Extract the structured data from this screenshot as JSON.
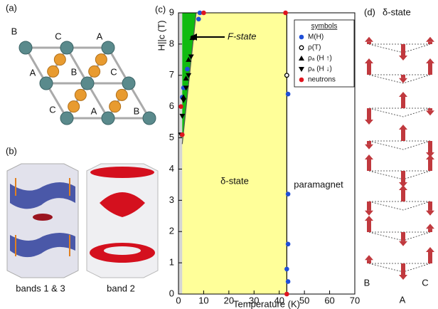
{
  "panel_a": {
    "label": "(a)",
    "site_labels": [
      "B",
      "C",
      "A",
      "A",
      "B",
      "C",
      "C",
      "A",
      "B"
    ]
  },
  "panel_b": {
    "label": "(b)",
    "captions": [
      "bands 1 & 3",
      "band 2"
    ]
  },
  "panel_d": {
    "label": "(d)",
    "title": "δ-state",
    "site_labels": [
      "B",
      "A",
      "C"
    ]
  },
  "chart_data": {
    "type": "scatter",
    "panel_label": "(c)",
    "x_label": "Temperature (K)",
    "y_label": "H||c (T)",
    "xlim": [
      0,
      70
    ],
    "ylim": [
      0,
      9
    ],
    "xticks": [
      0,
      10,
      20,
      30,
      40,
      50,
      60,
      70
    ],
    "yticks": [
      0,
      1,
      2,
      3,
      4,
      5,
      6,
      7,
      8,
      9
    ],
    "legend_title": "symbols",
    "legend": "upper right",
    "regions": [
      {
        "color": "#d4d4d4",
        "x": [
          0,
          1.5,
          1.5,
          0
        ],
        "y": [
          0,
          0,
          9,
          9
        ]
      },
      {
        "label": "δ-state",
        "color": "#ffff99",
        "x": [
          1.5,
          43,
          43,
          7,
          1.5
        ],
        "y": [
          0,
          0,
          9,
          9,
          4.8
        ]
      },
      {
        "label": "F-state",
        "color": "#11bb11",
        "x": [
          1.5,
          7,
          1.5
        ],
        "y": [
          4.8,
          9,
          9
        ]
      },
      {
        "label": "paramagnet",
        "color": "#ffffff",
        "x": [
          43,
          70,
          70,
          43
        ],
        "y": [
          0,
          0,
          9,
          9
        ]
      }
    ],
    "lines": [
      {
        "color": "#000000",
        "x": [
          43,
          43
        ],
        "y": [
          0,
          9
        ]
      },
      {
        "color": "#555555",
        "x": [
          1.5,
          7
        ],
        "y": [
          4.8,
          9
        ]
      }
    ],
    "series": [
      {
        "name": "M(H)",
        "marker": "circle",
        "color": "#1f4fd8",
        "x": [
          43.5,
          43,
          43.5,
          43.5,
          43.5,
          8.5,
          8,
          3.5,
          2,
          1.5
        ],
        "values": [
          0.4,
          0.8,
          1.6,
          3.2,
          6.4,
          9,
          8.8,
          7.2,
          6.6,
          6.3
        ]
      },
      {
        "name": "ρ(T)",
        "marker": "open-circle",
        "color": "#000000",
        "x": [
          43
        ],
        "values": [
          7.0
        ]
      },
      {
        "name": "ρₐ (H ↑)",
        "marker": "triangle-up",
        "color": "#000000",
        "x": [
          2,
          3,
          4,
          5.5
        ],
        "values": [
          6.3,
          6.9,
          7.5,
          8.2
        ]
      },
      {
        "name": "ρₐ (H ↓)",
        "marker": "triangle-down",
        "color": "#000000",
        "x": [
          1,
          1.5,
          2,
          3,
          4,
          5,
          6
        ],
        "values": [
          5.1,
          5.7,
          6.2,
          6.6,
          7.0,
          7.6,
          8.2
        ]
      },
      {
        "name": "neutrons",
        "marker": "circle",
        "color": "#e0141e",
        "x": [
          1.5,
          1,
          10,
          42.5,
          43
        ],
        "values": [
          5.1,
          6.0,
          9,
          9,
          0
        ]
      }
    ]
  }
}
